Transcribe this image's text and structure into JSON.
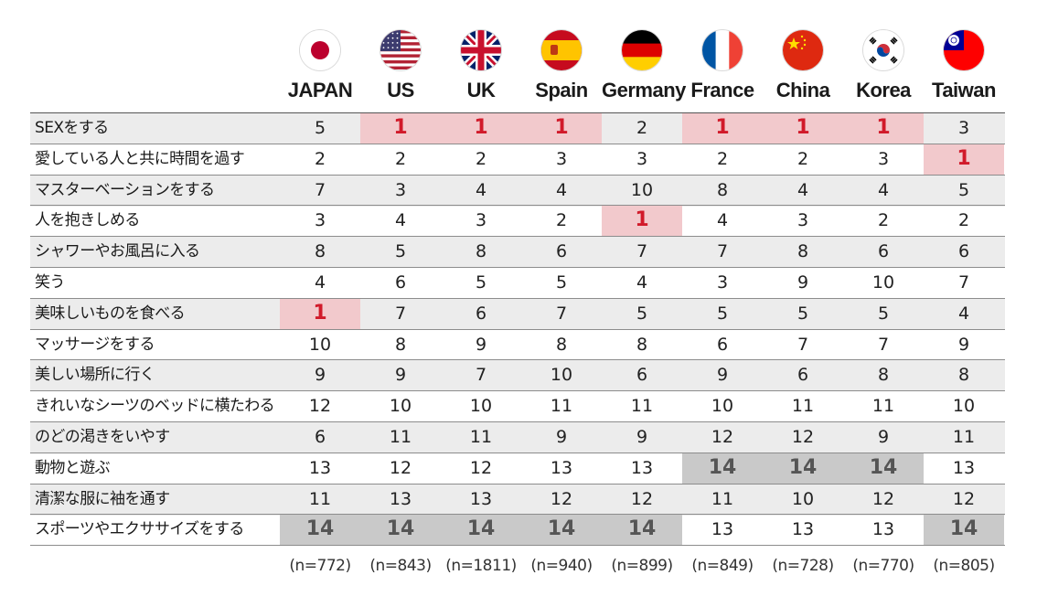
{
  "chart_data": {
    "type": "table",
    "columns": [
      "JAPAN",
      "US",
      "UK",
      "Spain",
      "Germany",
      "France",
      "China",
      "Korea",
      "Taiwan"
    ],
    "flags": [
      "japan-flag-icon",
      "us-flag-icon",
      "uk-flag-icon",
      "spain-flag-icon",
      "germany-flag-icon",
      "france-flag-icon",
      "china-flag-icon",
      "korea-flag-icon",
      "taiwan-flag-icon"
    ],
    "rows": [
      {
        "label": "SEXをする",
        "values": [
          "5",
          "1",
          "1",
          "1",
          "2",
          "1",
          "1",
          "1",
          "3"
        ]
      },
      {
        "label": "愛している人と共に時間を過す",
        "values": [
          "2",
          "2",
          "2",
          "3",
          "3",
          "2",
          "2",
          "3",
          "1"
        ]
      },
      {
        "label": "マスターベーションをする",
        "values": [
          "7",
          "3",
          "4",
          "4",
          "10",
          "8",
          "4",
          "4",
          "5"
        ]
      },
      {
        "label": "人を抱きしめる",
        "values": [
          "3",
          "4",
          "3",
          "2",
          "1",
          "4",
          "3",
          "2",
          "2"
        ]
      },
      {
        "label": "シャワーやお風呂に入る",
        "values": [
          "8",
          "5",
          "8",
          "6",
          "7",
          "7",
          "8",
          "6",
          "6"
        ]
      },
      {
        "label": "笑う",
        "values": [
          "4",
          "6",
          "5",
          "5",
          "4",
          "3",
          "9",
          "10",
          "7"
        ]
      },
      {
        "label": "美味しいものを食べる",
        "values": [
          "1",
          "7",
          "6",
          "7",
          "5",
          "5",
          "5",
          "5",
          "4"
        ]
      },
      {
        "label": "マッサージをする",
        "values": [
          "10",
          "8",
          "9",
          "8",
          "8",
          "6",
          "7",
          "7",
          "9"
        ]
      },
      {
        "label": "美しい場所に行く",
        "values": [
          "9",
          "9",
          "7",
          "10",
          "6",
          "9",
          "6",
          "8",
          "8"
        ]
      },
      {
        "label": "きれいなシーツのベッドに横たわる",
        "values": [
          "12",
          "10",
          "10",
          "11",
          "11",
          "10",
          "11",
          "11",
          "10"
        ]
      },
      {
        "label": "のどの渇きをいやす",
        "values": [
          "6",
          "11",
          "11",
          "9",
          "9",
          "12",
          "12",
          "9",
          "11"
        ]
      },
      {
        "label": "動物と遊ぶ",
        "values": [
          "13",
          "12",
          "12",
          "13",
          "13",
          "14",
          "14",
          "14",
          "13"
        ]
      },
      {
        "label": "清潔な服に袖を通す",
        "values": [
          "11",
          "13",
          "13",
          "12",
          "12",
          "11",
          "10",
          "12",
          "12"
        ]
      },
      {
        "label": "スポーツやエクササイズをする",
        "values": [
          "14",
          "14",
          "14",
          "14",
          "14",
          "13",
          "13",
          "13",
          "14"
        ]
      }
    ],
    "sample_sizes": [
      "(n=772)",
      "(n=843)",
      "(n=1811)",
      "(n=940)",
      "(n=899)",
      "(n=849)",
      "(n=728)",
      "(n=770)",
      "(n=805)"
    ],
    "highlight": {
      "best": "1",
      "worst": "14"
    },
    "colors": {
      "best_bg": "#f2c9cc",
      "best_text": "#d11a2a",
      "worst_bg": "#c9c9c9",
      "worst_text": "#555555",
      "row_shade": "#ececec"
    }
  }
}
